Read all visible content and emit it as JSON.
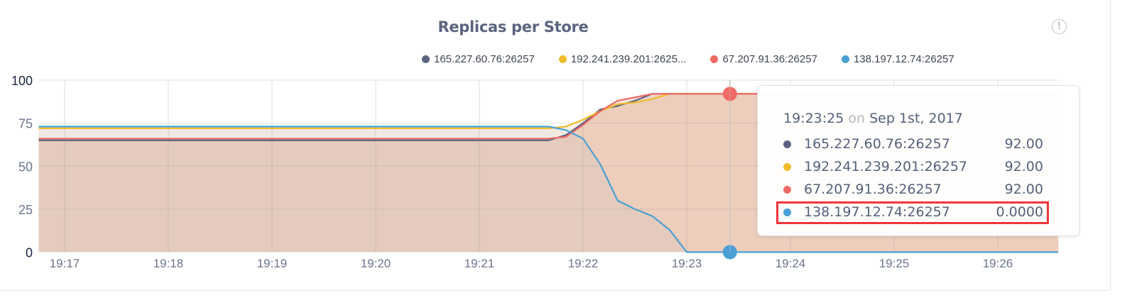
{
  "chart_data": {
    "type": "area",
    "title": "Replicas per Store",
    "xlabel": "",
    "ylabel": "",
    "ylim": [
      0,
      100
    ],
    "xlim": [
      "19:16:45",
      "19:26:35"
    ],
    "y_ticks": [
      "0",
      "25",
      "50",
      "75",
      "100"
    ],
    "x_ticks": [
      "19:17",
      "19:18",
      "19:19",
      "19:20",
      "19:21",
      "19:22",
      "19:23",
      "19:24",
      "19:25",
      "19:26"
    ],
    "grid": true,
    "legend_position": "top-center",
    "legend": [
      "165.227.60.76:26257",
      "192.241.239.201:2625...",
      "67.207.91.36:26257",
      "138.197.12.74:26257"
    ],
    "series": [
      {
        "name": "165.227.60.76:26257",
        "color": "#5a6480",
        "points": [
          [
            "19:16:45",
            65
          ],
          [
            "19:21:40",
            65
          ],
          [
            "19:21:50",
            68
          ],
          [
            "19:22:00",
            75
          ],
          [
            "19:22:10",
            83
          ],
          [
            "19:22:20",
            85
          ],
          [
            "19:22:30",
            88
          ],
          [
            "19:22:40",
            92
          ],
          [
            "19:26:35",
            92
          ]
        ]
      },
      {
        "name": "192.241.239.201:26257",
        "color": "#f0bc2a",
        "points": [
          [
            "19:16:45",
            72
          ],
          [
            "19:21:40",
            72
          ],
          [
            "19:21:50",
            73
          ],
          [
            "19:22:00",
            77
          ],
          [
            "19:22:10",
            82
          ],
          [
            "19:22:20",
            86
          ],
          [
            "19:22:30",
            87
          ],
          [
            "19:22:40",
            89
          ],
          [
            "19:22:50",
            92
          ],
          [
            "19:26:35",
            92
          ]
        ]
      },
      {
        "name": "67.207.91.36:26257",
        "color": "#f06a66",
        "points": [
          [
            "19:16:45",
            66
          ],
          [
            "19:21:40",
            66
          ],
          [
            "19:21:50",
            67
          ],
          [
            "19:22:00",
            74
          ],
          [
            "19:22:10",
            82
          ],
          [
            "19:22:20",
            88
          ],
          [
            "19:22:30",
            90
          ],
          [
            "19:22:40",
            92
          ],
          [
            "19:26:35",
            92
          ]
        ]
      },
      {
        "name": "138.197.12.74:26257",
        "color": "#4a9fd4",
        "points": [
          [
            "19:16:45",
            73
          ],
          [
            "19:21:40",
            73
          ],
          [
            "19:21:50",
            71
          ],
          [
            "19:22:00",
            66
          ],
          [
            "19:22:10",
            51
          ],
          [
            "19:22:20",
            30
          ],
          [
            "19:22:30",
            25
          ],
          [
            "19:22:40",
            21
          ],
          [
            "19:22:50",
            13
          ],
          [
            "19:23:00",
            0
          ],
          [
            "19:26:35",
            0
          ]
        ]
      }
    ],
    "hover": {
      "time": "19:23:25",
      "on": "on",
      "date": "Sep 1st, 2017",
      "rows": [
        {
          "name": "165.227.60.76:26257",
          "value": "92.00",
          "color": "#5a6480"
        },
        {
          "name": "192.241.239.201:26257",
          "value": "92.00",
          "color": "#f0bc2a"
        },
        {
          "name": "67.207.91.36:26257",
          "value": "92.00",
          "color": "#f06a66"
        },
        {
          "name": "138.197.12.74:26257",
          "value": "0.0000",
          "color": "#4a9fd4",
          "highlighted": true
        }
      ]
    }
  },
  "info_icon": "exclamation-circle-icon",
  "info_glyph": "!"
}
